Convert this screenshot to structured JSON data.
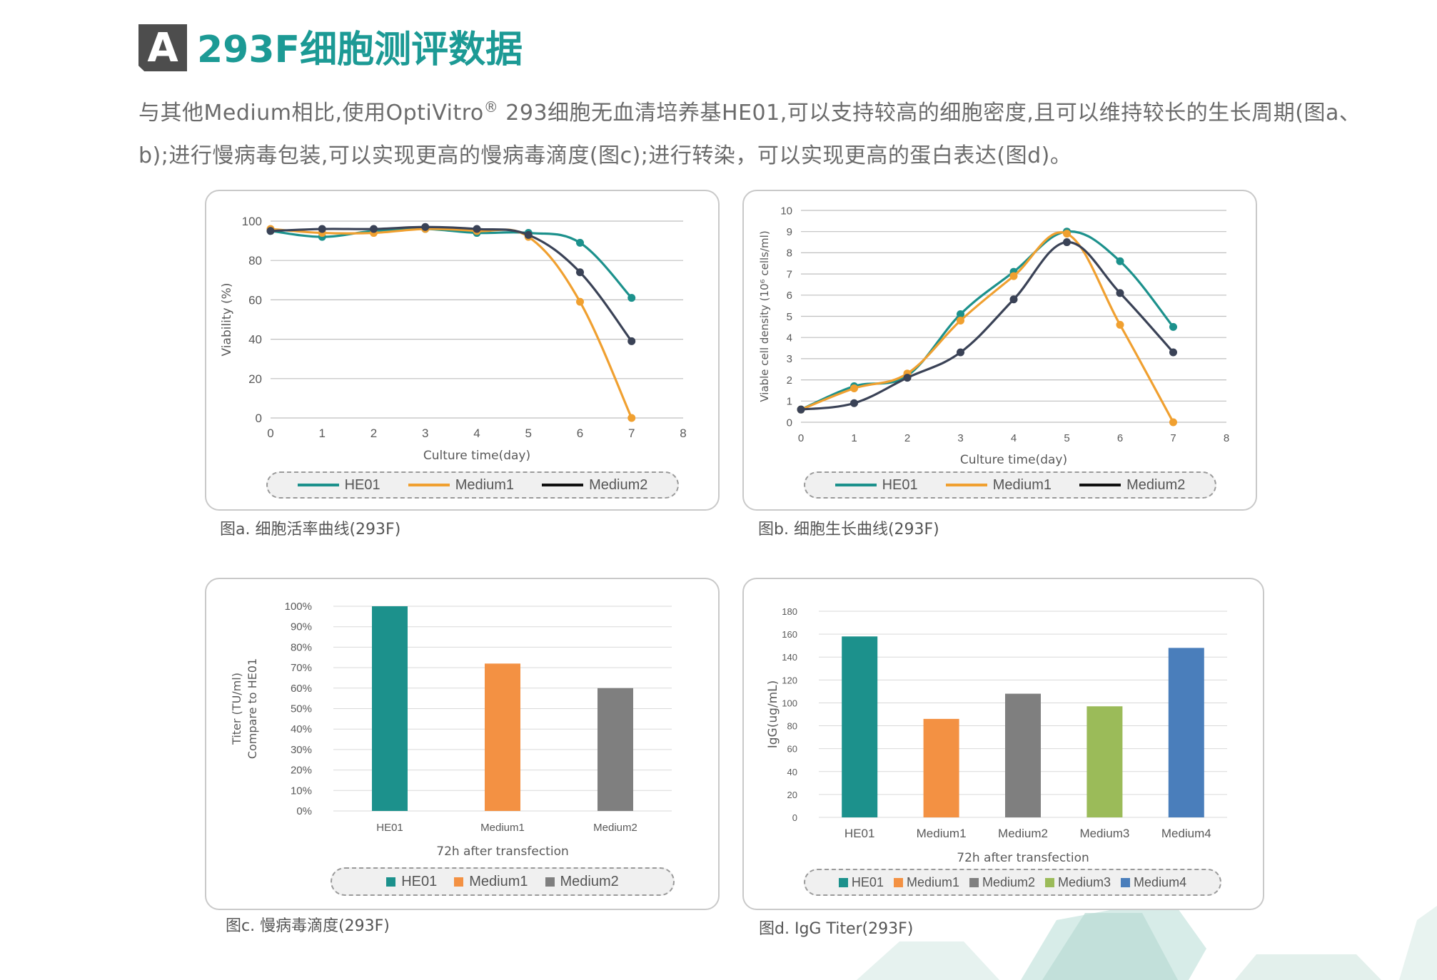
{
  "header": {
    "badge": "A",
    "title": "293F细胞测评数据",
    "intro_before_reg": "与其他Medium相比,使用OptiVitro",
    "reg_mark": "®",
    "intro_after_reg": " 293细胞无血清培养基HE01,可以支持较高的细胞密度,且可以维持较长的生长周期(图a、b);进行慢病毒包装,可以实现更高的慢病毒滴度(图c);进行转染，可以实现更高的蛋白表达(图d)。"
  },
  "colors": {
    "he01": "#1c918c",
    "medium1": "#f0a030",
    "medium2": "#3a4256",
    "bar_m1": "#f39143",
    "bar_m2": "#7f7f7f",
    "bar_m3": "#9bbb59",
    "bar_m4": "#4a7ebb",
    "title": "#1c9a95"
  },
  "chart_data": [
    {
      "id": "a",
      "type": "line",
      "xlabel": "Culture time(day)",
      "ylabel": "Viability (%)",
      "xlim": [
        0,
        8
      ],
      "ylim": [
        0,
        100
      ],
      "xticks": [
        "0",
        "1",
        "2",
        "3",
        "4",
        "5",
        "6",
        "7",
        "8"
      ],
      "yticks": [
        "0",
        "20",
        "40",
        "60",
        "80",
        "100"
      ],
      "grid": true,
      "legend": "bottom",
      "series": [
        {
          "name": "HE01",
          "color": "#1c918c",
          "x": [
            0,
            1,
            2,
            3,
            4,
            5,
            6,
            7
          ],
          "y": [
            95,
            92,
            95,
            96,
            94,
            94,
            89,
            61
          ]
        },
        {
          "name": "Medium1",
          "color": "#f0a030",
          "x": [
            0,
            1,
            2,
            3,
            4,
            5,
            6,
            7
          ],
          "y": [
            96,
            94,
            94,
            96,
            95,
            92,
            59,
            0
          ]
        },
        {
          "name": "Medium2",
          "color": "#3a4256",
          "x": [
            0,
            1,
            2,
            3,
            4,
            5,
            6,
            7
          ],
          "y": [
            95,
            96,
            96,
            97,
            96,
            93,
            74,
            39
          ]
        }
      ],
      "caption": "图a. 细胞活率曲线(293F)"
    },
    {
      "id": "b",
      "type": "line",
      "xlabel": "Culture time(day)",
      "ylabel": "Viable cell density (10⁶ cells/ml)",
      "xlim": [
        0,
        8
      ],
      "ylim": [
        0,
        10
      ],
      "xticks": [
        "0",
        "1",
        "2",
        "3",
        "4",
        "5",
        "6",
        "7",
        "8"
      ],
      "yticks": [
        "0",
        "1",
        "2",
        "3",
        "4",
        "5",
        "6",
        "7",
        "8",
        "9",
        "10"
      ],
      "grid": true,
      "legend": "bottom",
      "series": [
        {
          "name": "HE01",
          "color": "#1c918c",
          "x": [
            0,
            1,
            2,
            3,
            4,
            5,
            6,
            7
          ],
          "y": [
            0.6,
            1.7,
            2.2,
            5.1,
            7.1,
            9.0,
            7.6,
            4.5
          ]
        },
        {
          "name": "Medium1",
          "color": "#f0a030",
          "x": [
            0,
            1,
            2,
            3,
            4,
            5,
            6,
            7
          ],
          "y": [
            0.6,
            1.6,
            2.3,
            4.8,
            6.9,
            8.9,
            4.6,
            0
          ]
        },
        {
          "name": "Medium2",
          "color": "#3a4256",
          "x": [
            0,
            1,
            2,
            3,
            4,
            5,
            6,
            7
          ],
          "y": [
            0.6,
            0.9,
            2.1,
            3.3,
            5.8,
            8.5,
            6.1,
            3.3
          ]
        }
      ],
      "caption": "图b. 细胞生长曲线(293F)"
    },
    {
      "id": "c",
      "type": "bar",
      "categories": [
        "HE01",
        "Medium1",
        "Medium2"
      ],
      "values": [
        100,
        72,
        60
      ],
      "colors": [
        "#1c918c",
        "#f39143",
        "#7f7f7f"
      ],
      "xlabel": "72h after transfection",
      "ylabel": [
        "Titer (TU/ml)",
        "Compare to HE01"
      ],
      "ylim": [
        0,
        100
      ],
      "yticks": [
        "0%",
        "10%",
        "20%",
        "30%",
        "40%",
        "50%",
        "60%",
        "70%",
        "80%",
        "90%",
        "100%"
      ],
      "grid": true,
      "legend": "bottom",
      "legend_items": [
        "HE01",
        "Medium1",
        "Medium2"
      ],
      "caption": "图c. 慢病毒滴度(293F)"
    },
    {
      "id": "d",
      "type": "bar",
      "categories": [
        "HE01",
        "Medium1",
        "Medium2",
        "Medium3",
        "Medium4"
      ],
      "values": [
        158,
        86,
        108,
        97,
        148
      ],
      "colors": [
        "#1c918c",
        "#f39143",
        "#7f7f7f",
        "#9bbb59",
        "#4a7ebb"
      ],
      "xlabel": "72h after transfection",
      "ylabel": "IgG(ug/mL)",
      "ylim": [
        0,
        180
      ],
      "yticks": [
        "0",
        "20",
        "40",
        "60",
        "80",
        "100",
        "120",
        "140",
        "160",
        "180"
      ],
      "grid": true,
      "legend": "bottom",
      "legend_items": [
        "HE01",
        "Medium1",
        "Medium2",
        "Medium3",
        "Medium4"
      ],
      "caption": "图d. IgG Titer(293F)"
    }
  ]
}
